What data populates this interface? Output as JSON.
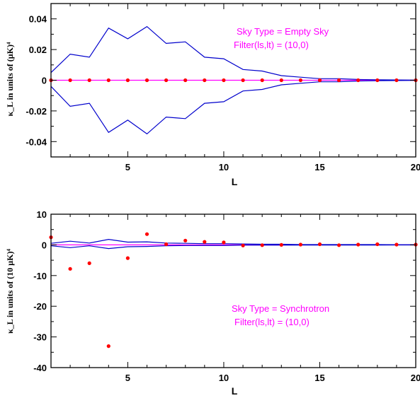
{
  "chart_data": [
    {
      "type": "line",
      "xlabel": "L",
      "ylabel": "κ_L in units of (μK)⁴",
      "xlim": [
        1,
        20
      ],
      "ylim": [
        -0.05,
        0.05
      ],
      "xticks": [
        5,
        10,
        15,
        20
      ],
      "xtick_labels": [
        "5",
        "10",
        "15",
        "20"
      ],
      "yticks": [
        0.04,
        0.02,
        0,
        -0.02,
        -0.04
      ],
      "ytick_labels": [
        "0.04",
        "0.02",
        "0",
        "-0.02",
        "-0.04"
      ],
      "annotations": [
        "Sky Type =  Empty Sky",
        "Filter(ls,lt) = (10,0)"
      ],
      "colors": {
        "band": "#0000cc",
        "zero_line": "#ff00ff",
        "points": "#ff0000"
      },
      "series": [
        {
          "style": "line",
          "x": [
            1,
            2,
            3,
            4,
            5,
            6,
            7,
            8,
            9,
            10,
            11,
            12,
            13,
            14,
            15,
            16,
            17,
            18,
            19,
            20
          ],
          "values": [
            0.005,
            0.017,
            0.015,
            0.034,
            0.027,
            0.035,
            0.024,
            0.025,
            0.015,
            0.014,
            0.007,
            0.006,
            0.003,
            0.002,
            0.001,
            0.001,
            0.0005,
            0.0003,
            0.0002,
            0.0001
          ]
        },
        {
          "style": "line",
          "x": [
            1,
            2,
            3,
            4,
            5,
            6,
            7,
            8,
            9,
            10,
            11,
            12,
            13,
            14,
            15,
            16,
            17,
            18,
            19,
            20
          ],
          "values": [
            -0.004,
            -0.017,
            -0.015,
            -0.034,
            -0.026,
            -0.035,
            -0.024,
            -0.025,
            -0.015,
            -0.014,
            -0.007,
            -0.006,
            -0.003,
            -0.002,
            -0.001,
            -0.001,
            -0.0005,
            -0.0003,
            -0.0002,
            -0.0001
          ]
        },
        {
          "style": "points",
          "x": [
            1,
            2,
            3,
            4,
            5,
            6,
            7,
            8,
            9,
            10,
            11,
            12,
            13,
            14,
            15,
            16,
            17,
            18,
            19,
            20
          ],
          "values": [
            0,
            0,
            0,
            0,
            0,
            0,
            0,
            0,
            0,
            0,
            0,
            0,
            0,
            0,
            0,
            0,
            0,
            0,
            0,
            0
          ]
        }
      ]
    },
    {
      "type": "line",
      "xlabel": "L",
      "ylabel": "κ_L in units of (10 μK)⁴",
      "xlim": [
        1,
        20
      ],
      "ylim": [
        -40,
        10
      ],
      "xticks": [
        5,
        10,
        15,
        20
      ],
      "xtick_labels": [
        "5",
        "10",
        "15",
        "20"
      ],
      "yticks": [
        10,
        0,
        -10,
        -20,
        -30,
        -40
      ],
      "ytick_labels": [
        "10",
        "0",
        "-10",
        "-20",
        "-30",
        "-40"
      ],
      "annotations": [
        "Sky Type =  Synchrotron",
        "Filter(ls,lt) = (10,0)"
      ],
      "colors": {
        "band": "#0000cc",
        "zero_line": "#ff00ff",
        "points": "#ff0000"
      },
      "series": [
        {
          "style": "line",
          "x": [
            1,
            2,
            3,
            4,
            5,
            6,
            7,
            8,
            9,
            10,
            11,
            12,
            13,
            14,
            15,
            16,
            17,
            18,
            19,
            20
          ],
          "values": [
            0.5,
            1.2,
            0.6,
            1.8,
            0.9,
            1.0,
            0.6,
            0.5,
            0.4,
            0.4,
            0.3,
            0.2,
            0.2,
            0.1,
            0.1,
            0.1,
            0.1,
            0.1,
            0.05,
            0.05
          ]
        },
        {
          "style": "line",
          "x": [
            1,
            2,
            3,
            4,
            5,
            6,
            7,
            8,
            9,
            10,
            11,
            12,
            13,
            14,
            15,
            16,
            17,
            18,
            19,
            20
          ],
          "values": [
            -0.3,
            -0.9,
            -0.3,
            -1.2,
            -0.6,
            -0.5,
            -0.3,
            -0.2,
            -0.2,
            -0.2,
            -0.1,
            -0.1,
            -0.1,
            -0.05,
            -0.05,
            -0.05,
            -0.05,
            -0.05,
            -0.02,
            -0.02
          ]
        },
        {
          "style": "points",
          "x": [
            1,
            2,
            3,
            4,
            5,
            6,
            7,
            8,
            9,
            10,
            11,
            12,
            13,
            14,
            15,
            16,
            17,
            18,
            19,
            20
          ],
          "values": [
            2.5,
            -7.8,
            -6.0,
            -33.0,
            -4.3,
            3.5,
            0.2,
            1.4,
            1.0,
            0.8,
            -0.2,
            -0.1,
            0.0,
            0.1,
            0.2,
            -0.1,
            0.1,
            0.2,
            0.1,
            0.1
          ]
        }
      ]
    }
  ]
}
